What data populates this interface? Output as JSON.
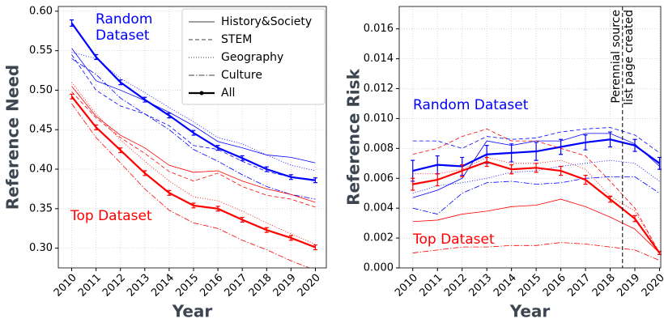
{
  "chart_data": [
    {
      "type": "line",
      "xlabel": "Year",
      "ylabel": "Reference Need",
      "x": [
        2010,
        2011,
        2012,
        2013,
        2014,
        2015,
        2016,
        2017,
        2018,
        2019,
        2020
      ],
      "xlim": [
        2009.45,
        2020.45
      ],
      "xticks": [
        2010,
        2011,
        2012,
        2013,
        2014,
        2015,
        2016,
        2017,
        2018,
        2019,
        2020
      ],
      "ylim": [
        0.275,
        0.606
      ],
      "yticks": [
        {
          "value": 0.3,
          "label": "0.30"
        },
        0.35,
        {
          "value": 0.4,
          "label": "0.40"
        },
        0.45,
        {
          "value": 0.5,
          "label": "0.50"
        },
        0.55,
        {
          "value": 0.6,
          "label": "0.60"
        }
      ],
      "grid": true,
      "legend": "upper right",
      "line_styles": [
        {
          "name": "History&Society",
          "dash": "solid"
        },
        {
          "name": "STEM",
          "dash": "dashed"
        },
        {
          "name": "Geography",
          "dash": "dotted"
        },
        {
          "name": "Culture",
          "dash": "dashdot"
        },
        {
          "name": "All",
          "dash": "solid",
          "bold": true
        }
      ],
      "groups": [
        {
          "label_lines": [
            "Random",
            "Dataset"
          ],
          "color": "#0000ff",
          "series": [
            [
              0.553,
              0.512,
              0.5,
              0.487,
              0.472,
              0.455,
              0.435,
              0.427,
              0.418,
              0.415,
              0.408
            ],
            [
              0.545,
              0.5,
              0.48,
              0.47,
              0.455,
              0.43,
              0.425,
              0.41,
              0.397,
              0.39,
              0.385
            ],
            [
              0.548,
              0.54,
              0.515,
              0.497,
              0.478,
              0.46,
              0.44,
              0.432,
              0.418,
              0.405,
              0.398
            ],
            [
              0.54,
              0.52,
              0.49,
              0.47,
              0.45,
              0.425,
              0.41,
              0.393,
              0.378,
              0.368,
              0.362
            ],
            [
              0.585,
              0.542,
              0.51,
              0.488,
              0.468,
              0.446,
              0.427,
              0.414,
              0.4,
              0.39,
              0.386
            ]
          ],
          "errors": [
            0.004,
            0.003,
            0.003,
            0.003,
            0.003,
            0.003,
            0.003,
            0.003,
            0.003,
            0.003,
            0.003
          ]
        },
        {
          "label_lines": [
            "Top Dataset"
          ],
          "color": "#ff0000",
          "series": [
            [
              0.505,
              0.467,
              0.443,
              0.427,
              0.405,
              0.396,
              0.398,
              0.385,
              0.375,
              0.368,
              0.358
            ],
            [
              0.498,
              0.465,
              0.44,
              0.42,
              0.397,
              0.385,
              0.395,
              0.378,
              0.367,
              0.362,
              0.352
            ],
            [
              0.51,
              0.47,
              0.437,
              0.41,
              0.385,
              0.365,
              0.36,
              0.347,
              0.332,
              0.318,
              0.305
            ],
            [
              0.483,
              0.44,
              0.408,
              0.375,
              0.348,
              0.332,
              0.325,
              0.31,
              0.298,
              0.284,
              0.272
            ],
            [
              0.492,
              0.453,
              0.424,
              0.395,
              0.37,
              0.354,
              0.35,
              0.336,
              0.323,
              0.313,
              0.301
            ]
          ],
          "errors": [
            0.003,
            0.003,
            0.003,
            0.003,
            0.003,
            0.003,
            0.003,
            0.003,
            0.003,
            0.003,
            0.003
          ]
        }
      ]
    },
    {
      "type": "line",
      "xlabel": "Year",
      "ylabel": "Reference Risk",
      "x": [
        2010,
        2011,
        2012,
        2013,
        2014,
        2015,
        2016,
        2017,
        2018,
        2019,
        2020
      ],
      "xlim": [
        2009.45,
        2020.05
      ],
      "xticks": [
        2010,
        2011,
        2012,
        2013,
        2014,
        2015,
        2016,
        2017,
        2018,
        2019,
        2020
      ],
      "ylim": [
        0,
        0.0175
      ],
      "yticks": [
        {
          "value": 0,
          "label": "0.000"
        },
        0.002,
        0.004,
        0.006,
        0.008,
        {
          "value": 0.01,
          "label": "0.010"
        },
        0.012,
        0.014,
        0.016
      ],
      "grid": true,
      "vline": {
        "x": 2018.5,
        "label_lines": [
          "Perennial source",
          "list page created"
        ]
      },
      "groups": [
        {
          "label_lines": [
            "Random Dataset"
          ],
          "color": "#0000ff",
          "series": [
            [
              0.0047,
              0.0052,
              0.006,
              0.0085,
              0.0082,
              0.0085,
              0.0085,
              0.009,
              0.009,
              0.0083,
              0.0068
            ],
            [
              0.0085,
              0.0085,
              0.008,
              0.0088,
              0.0086,
              0.0087,
              0.0091,
              0.0093,
              0.0094,
              0.0089,
              0.0077
            ],
            [
              0.005,
              0.0055,
              0.0057,
              0.006,
              0.0064,
              0.0065,
              0.0068,
              0.007,
              0.0072,
              0.007,
              0.0058
            ],
            [
              0.004,
              0.0036,
              0.005,
              0.0057,
              0.0058,
              0.0056,
              0.0057,
              0.006,
              0.0061,
              0.0061,
              0.005
            ],
            [
              0.0065,
              0.0069,
              0.0068,
              0.0076,
              0.0077,
              0.0078,
              0.0081,
              0.0084,
              0.0086,
              0.0082,
              0.007
            ]
          ],
          "errors": [
            0.0007,
            0.0006,
            0.0006,
            0.0006,
            0.0006,
            0.0006,
            0.0005,
            0.0005,
            0.0005,
            0.0004,
            0.0004
          ]
        },
        {
          "label_lines": [
            "Top Dataset"
          ],
          "color": "#ff0000",
          "series": [
            [
              0.0031,
              0.0032,
              0.0036,
              0.0038,
              0.0041,
              0.0042,
              0.0046,
              0.0041,
              0.0034,
              0.0026,
              0.001
            ],
            [
              0.0076,
              0.008,
              0.0088,
              0.0093,
              0.0085,
              0.0085,
              0.008,
              0.0075,
              0.0058,
              0.004,
              0.001
            ],
            [
              0.0063,
              0.0063,
              0.0066,
              0.0074,
              0.007,
              0.007,
              0.0072,
              0.0066,
              0.0048,
              0.0038,
              0.001
            ],
            [
              0.001,
              0.0012,
              0.0014,
              0.0014,
              0.0015,
              0.0015,
              0.0017,
              0.0016,
              0.0014,
              0.0012,
              0.0005
            ],
            [
              0.0056,
              0.0059,
              0.0065,
              0.0071,
              0.0066,
              0.0067,
              0.0065,
              0.0059,
              0.0046,
              0.0033,
              0.001
            ]
          ],
          "errors": [
            0.0004,
            0.0004,
            0.0004,
            0.0003,
            0.0003,
            0.0003,
            0.0003,
            0.0003,
            0.0002,
            0.0002,
            0.0001
          ]
        }
      ]
    }
  ]
}
